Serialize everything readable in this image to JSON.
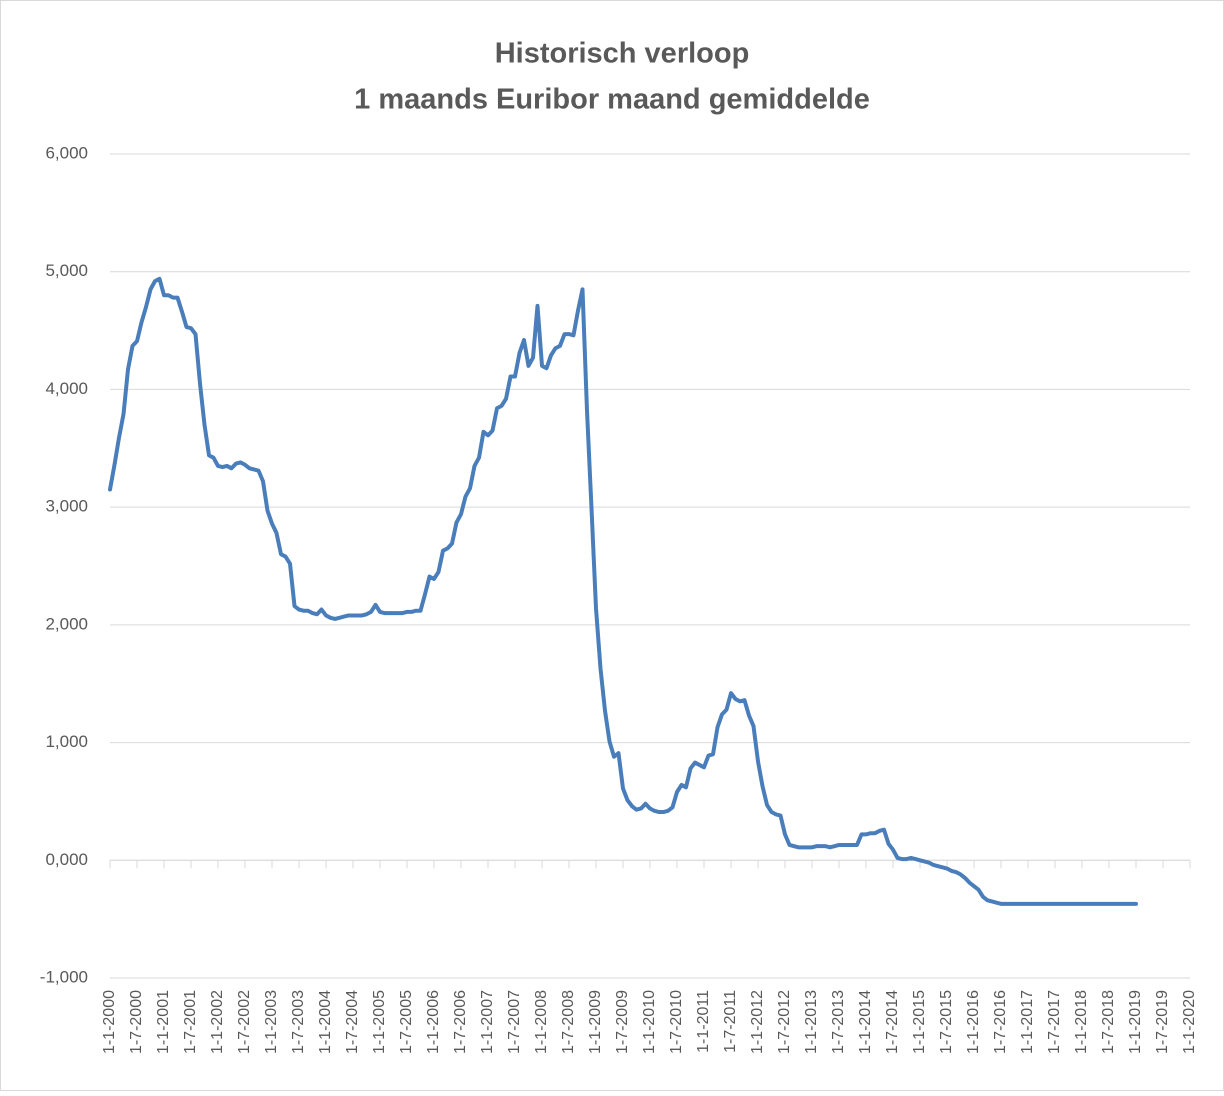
{
  "chart_data": {
    "type": "line",
    "title": [
      "Historisch verloop",
      "1 maands Euribor maand gemiddelde"
    ],
    "x": [
      "1-1-2000",
      "1-2-2000",
      "1-3-2000",
      "1-4-2000",
      "1-5-2000",
      "1-6-2000",
      "1-7-2000",
      "1-8-2000",
      "1-9-2000",
      "1-10-2000",
      "1-11-2000",
      "1-12-2000",
      "1-1-2001",
      "1-2-2001",
      "1-3-2001",
      "1-4-2001",
      "1-5-2001",
      "1-6-2001",
      "1-7-2001",
      "1-8-2001",
      "1-9-2001",
      "1-10-2001",
      "1-11-2001",
      "1-12-2001",
      "1-1-2002",
      "1-2-2002",
      "1-3-2002",
      "1-4-2002",
      "1-5-2002",
      "1-6-2002",
      "1-7-2002",
      "1-8-2002",
      "1-9-2002",
      "1-10-2002",
      "1-11-2002",
      "1-12-2002",
      "1-1-2003",
      "1-2-2003",
      "1-3-2003",
      "1-4-2003",
      "1-5-2003",
      "1-6-2003",
      "1-7-2003",
      "1-8-2003",
      "1-9-2003",
      "1-10-2003",
      "1-11-2003",
      "1-12-2003",
      "1-1-2004",
      "1-2-2004",
      "1-3-2004",
      "1-4-2004",
      "1-5-2004",
      "1-6-2004",
      "1-7-2004",
      "1-8-2004",
      "1-9-2004",
      "1-10-2004",
      "1-11-2004",
      "1-12-2004",
      "1-1-2005",
      "1-2-2005",
      "1-3-2005",
      "1-4-2005",
      "1-5-2005",
      "1-6-2005",
      "1-7-2005",
      "1-8-2005",
      "1-9-2005",
      "1-10-2005",
      "1-11-2005",
      "1-12-2005",
      "1-1-2006",
      "1-2-2006",
      "1-3-2006",
      "1-4-2006",
      "1-5-2006",
      "1-6-2006",
      "1-7-2006",
      "1-8-2006",
      "1-9-2006",
      "1-10-2006",
      "1-11-2006",
      "1-12-2006",
      "1-1-2007",
      "1-2-2007",
      "1-3-2007",
      "1-4-2007",
      "1-5-2007",
      "1-6-2007",
      "1-7-2007",
      "1-8-2007",
      "1-9-2007",
      "1-10-2007",
      "1-11-2007",
      "1-12-2007",
      "1-1-2008",
      "1-2-2008",
      "1-3-2008",
      "1-4-2008",
      "1-5-2008",
      "1-6-2008",
      "1-7-2008",
      "1-8-2008",
      "1-9-2008",
      "1-10-2008",
      "1-11-2008",
      "1-12-2008",
      "1-1-2009",
      "1-2-2009",
      "1-3-2009",
      "1-4-2009",
      "1-5-2009",
      "1-6-2009",
      "1-7-2009",
      "1-8-2009",
      "1-9-2009",
      "1-10-2009",
      "1-11-2009",
      "1-12-2009",
      "1-1-2010",
      "1-2-2010",
      "1-3-2010",
      "1-4-2010",
      "1-5-2010",
      "1-6-2010",
      "1-7-2010",
      "1-8-2010",
      "1-9-2010",
      "1-10-2010",
      "1-11-2010",
      "1-12-2010",
      "1-1-2011",
      "1-2-2011",
      "1-3-2011",
      "1-4-2011",
      "1-5-2011",
      "1-6-2011",
      "1-7-2011",
      "1-8-2011",
      "1-9-2011",
      "1-10-2011",
      "1-11-2011",
      "1-12-2011",
      "1-1-2012",
      "1-2-2012",
      "1-3-2012",
      "1-4-2012",
      "1-5-2012",
      "1-6-2012",
      "1-7-2012",
      "1-8-2012",
      "1-9-2012",
      "1-10-2012",
      "1-11-2012",
      "1-12-2012",
      "1-1-2013",
      "1-2-2013",
      "1-3-2013",
      "1-4-2013",
      "1-5-2013",
      "1-6-2013",
      "1-7-2013",
      "1-8-2013",
      "1-9-2013",
      "1-10-2013",
      "1-11-2013",
      "1-12-2013",
      "1-1-2014",
      "1-2-2014",
      "1-3-2014",
      "1-4-2014",
      "1-5-2014",
      "1-6-2014",
      "1-7-2014",
      "1-8-2014",
      "1-9-2014",
      "1-10-2014",
      "1-11-2014",
      "1-12-2014",
      "1-1-2015",
      "1-2-2015",
      "1-3-2015",
      "1-4-2015",
      "1-5-2015",
      "1-6-2015",
      "1-7-2015",
      "1-8-2015",
      "1-9-2015",
      "1-10-2015",
      "1-11-2015",
      "1-12-2015",
      "1-1-2016",
      "1-2-2016",
      "1-3-2016",
      "1-4-2016",
      "1-5-2016",
      "1-6-2016",
      "1-7-2016",
      "1-8-2016",
      "1-9-2016",
      "1-10-2016",
      "1-11-2016",
      "1-12-2016",
      "1-1-2017",
      "1-2-2017",
      "1-3-2017",
      "1-4-2017",
      "1-5-2017",
      "1-6-2017",
      "1-7-2017",
      "1-8-2017",
      "1-9-2017",
      "1-10-2017",
      "1-11-2017",
      "1-12-2017",
      "1-1-2018",
      "1-2-2018",
      "1-3-2018",
      "1-4-2018",
      "1-5-2018",
      "1-6-2018",
      "1-7-2018",
      "1-8-2018",
      "1-9-2018",
      "1-10-2018",
      "1-11-2018",
      "1-12-2018",
      "1-1-2019"
    ],
    "series": [
      {
        "color": "#4a7ebb",
        "values": [
          3.15,
          3.36,
          3.59,
          3.79,
          4.17,
          4.37,
          4.41,
          4.57,
          4.7,
          4.85,
          4.92,
          4.94,
          4.8,
          4.8,
          4.78,
          4.78,
          4.66,
          4.53,
          4.52,
          4.47,
          4.05,
          3.7,
          3.44,
          3.42,
          3.35,
          3.34,
          3.35,
          3.33,
          3.37,
          3.38,
          3.36,
          3.33,
          3.32,
          3.31,
          3.22,
          2.97,
          2.86,
          2.78,
          2.6,
          2.58,
          2.52,
          2.16,
          2.13,
          2.12,
          2.12,
          2.1,
          2.09,
          2.13,
          2.08,
          2.06,
          2.05,
          2.06,
          2.07,
          2.08,
          2.08,
          2.08,
          2.08,
          2.09,
          2.11,
          2.17,
          2.11,
          2.1,
          2.1,
          2.1,
          2.1,
          2.1,
          2.11,
          2.11,
          2.12,
          2.12,
          2.26,
          2.41,
          2.39,
          2.45,
          2.63,
          2.65,
          2.69,
          2.87,
          2.94,
          3.09,
          3.16,
          3.35,
          3.42,
          3.64,
          3.61,
          3.65,
          3.84,
          3.86,
          3.92,
          4.11,
          4.11,
          4.31,
          4.42,
          4.2,
          4.27,
          4.71,
          4.2,
          4.18,
          4.29,
          4.35,
          4.37,
          4.47,
          4.47,
          4.46,
          4.67,
          4.85,
          3.82,
          2.99,
          2.14,
          1.63,
          1.27,
          1.01,
          0.88,
          0.91,
          0.61,
          0.51,
          0.46,
          0.43,
          0.44,
          0.48,
          0.44,
          0.42,
          0.41,
          0.41,
          0.42,
          0.45,
          0.58,
          0.64,
          0.62,
          0.78,
          0.83,
          0.81,
          0.79,
          0.89,
          0.9,
          1.13,
          1.24,
          1.28,
          1.42,
          1.37,
          1.35,
          1.36,
          1.23,
          1.14,
          0.84,
          0.63,
          0.47,
          0.41,
          0.39,
          0.38,
          0.22,
          0.13,
          0.12,
          0.11,
          0.11,
          0.11,
          0.11,
          0.12,
          0.12,
          0.12,
          0.11,
          0.12,
          0.13,
          0.13,
          0.13,
          0.13,
          0.13,
          0.22,
          0.22,
          0.23,
          0.23,
          0.25,
          0.26,
          0.14,
          0.09,
          0.02,
          0.01,
          0.01,
          0.02,
          0.01,
          0.0,
          -0.01,
          -0.02,
          -0.04,
          -0.05,
          -0.06,
          -0.07,
          -0.09,
          -0.1,
          -0.12,
          -0.15,
          -0.19,
          -0.22,
          -0.25,
          -0.31,
          -0.34,
          -0.35,
          -0.36,
          -0.37,
          -0.37,
          -0.37,
          -0.37,
          -0.37,
          -0.37,
          -0.37,
          -0.37,
          -0.37,
          -0.37,
          -0.37,
          -0.37,
          -0.37,
          -0.37,
          -0.37,
          -0.37,
          -0.37,
          -0.37,
          -0.37,
          -0.37,
          -0.37,
          -0.37,
          -0.37,
          -0.37,
          -0.37,
          -0.37,
          -0.37,
          -0.37,
          -0.37,
          -0.37,
          -0.37
        ]
      }
    ],
    "xlim": [
      "1-1-2000",
      "1-1-2020"
    ],
    "xticks": [
      "1-1-2000",
      "1-7-2000",
      "1-1-2001",
      "1-7-2001",
      "1-1-2002",
      "1-7-2002",
      "1-1-2003",
      "1-7-2003",
      "1-1-2004",
      "1-7-2004",
      "1-1-2005",
      "1-7-2005",
      "1-1-2006",
      "1-7-2006",
      "1-1-2007",
      "1-7-2007",
      "1-1-2008",
      "1-7-2008",
      "1-1-2009",
      "1-7-2009",
      "1-1-2010",
      "1-7-2010",
      "1-1-2011",
      "1-7-2011",
      "1-1-2012",
      "1-7-2012",
      "1-1-2013",
      "1-7-2013",
      "1-1-2014",
      "1-7-2014",
      "1-1-2015",
      "1-7-2015",
      "1-1-2016",
      "1-7-2016",
      "1-1-2017",
      "1-7-2017",
      "1-1-2018",
      "1-7-2018",
      "1-1-2019",
      "1-7-2019",
      "1-1-2020"
    ],
    "ylim": [
      -1,
      6
    ],
    "yticks": [
      {
        "value": -1,
        "label": "-1,000"
      },
      {
        "value": 0,
        "label": "0,000"
      },
      {
        "value": 1,
        "label": "1,000"
      },
      {
        "value": 2,
        "label": "2,000"
      },
      {
        "value": 3,
        "label": "3,000"
      },
      {
        "value": 4,
        "label": "4,000"
      },
      {
        "value": 5,
        "label": "5,000"
      },
      {
        "value": 6,
        "label": "6,000"
      }
    ],
    "grid": true
  }
}
